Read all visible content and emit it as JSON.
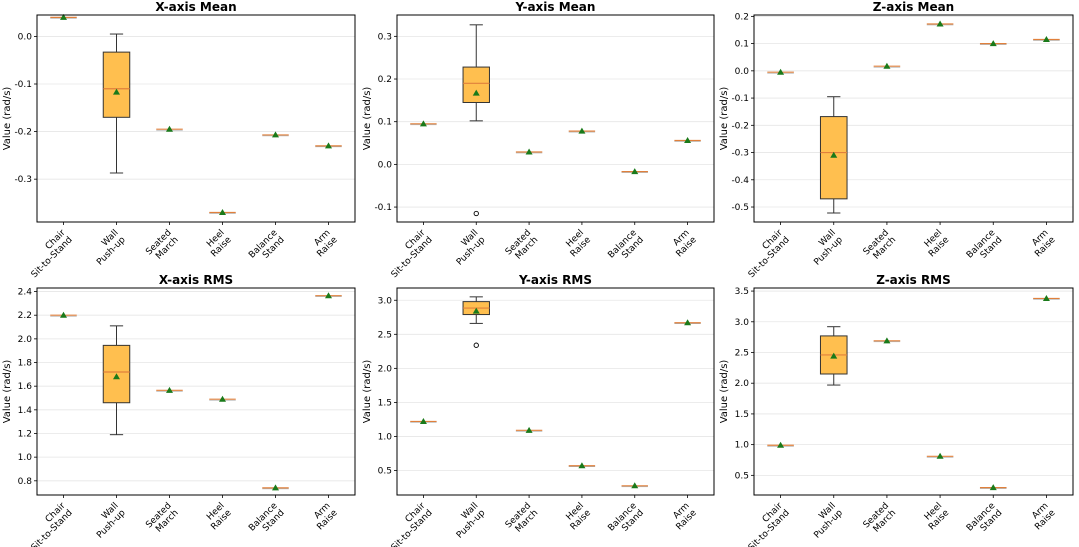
{
  "figure": {
    "ylabel": "Value (rad/s)"
  },
  "colors": {
    "box_fill": "#FFBF4F",
    "box_edge": "#333333",
    "median": "#E0803C",
    "mean_marker": "#1A7A1A",
    "grid": "#E6E6E6"
  },
  "categories": [
    [
      "Chair",
      "Sit-to-Stand"
    ],
    [
      "Wall",
      "Push-up"
    ],
    [
      "Seated",
      "March"
    ],
    [
      "Heel",
      "Raise"
    ],
    [
      "Balance",
      "Stand"
    ],
    [
      "Arm",
      "Raise"
    ]
  ],
  "chart_data": [
    {
      "type": "box",
      "title": "X-axis Mean",
      "ylabel": "Value (rad/s)",
      "ylim": [
        -0.39,
        0.045
      ],
      "yticks": [
        0.0,
        -0.1,
        -0.2,
        -0.3
      ],
      "tick_labels": [
        "0.0",
        "-0.1",
        "-0.2",
        "-0.3"
      ],
      "series": [
        {
          "category": "Chair Sit-to-Stand",
          "mean": 0.04
        },
        {
          "category": "Wall Push-up",
          "q1": -0.17,
          "median": -0.11,
          "q3": -0.033,
          "whisker_low": -0.287,
          "whisker_high": 0.005,
          "mean": -0.117
        },
        {
          "category": "Seated March",
          "mean": -0.195
        },
        {
          "category": "Heel Raise",
          "mean": -0.37
        },
        {
          "category": "Balance Stand",
          "mean": -0.207
        },
        {
          "category": "Arm Raise",
          "mean": -0.23
        }
      ]
    },
    {
      "type": "box",
      "title": "Y-axis Mean",
      "ylabel": "Value (rad/s)",
      "ylim": [
        -0.135,
        0.35
      ],
      "yticks": [
        0.3,
        0.2,
        0.1,
        0.0,
        -0.1
      ],
      "tick_labels": [
        "0.3",
        "0.2",
        "0.1",
        "0.0",
        "-0.1"
      ],
      "series": [
        {
          "category": "Chair Sit-to-Stand",
          "mean": 0.095
        },
        {
          "category": "Wall Push-up",
          "q1": 0.145,
          "median": 0.19,
          "q3": 0.228,
          "whisker_low": 0.102,
          "whisker_high": 0.327,
          "mean": 0.167,
          "outliers": [
            -0.115
          ]
        },
        {
          "category": "Seated March",
          "mean": 0.029
        },
        {
          "category": "Heel Raise",
          "mean": 0.078
        },
        {
          "category": "Balance Stand",
          "mean": -0.017
        },
        {
          "category": "Arm Raise",
          "mean": 0.056
        }
      ]
    },
    {
      "type": "box",
      "title": "Z-axis Mean",
      "ylabel": "Value (rad/s)",
      "ylim": [
        -0.555,
        0.205
      ],
      "yticks": [
        0.2,
        0.1,
        0.0,
        -0.1,
        -0.2,
        -0.3,
        -0.4,
        -0.5
      ],
      "tick_labels": [
        "0.2",
        "0.1",
        "0.0",
        "-0.1",
        "-0.2",
        "-0.3",
        "-0.4",
        "-0.5"
      ],
      "series": [
        {
          "category": "Chair Sit-to-Stand",
          "mean": -0.005
        },
        {
          "category": "Wall Push-up",
          "q1": -0.47,
          "median": -0.3,
          "q3": -0.168,
          "whisker_low": -0.522,
          "whisker_high": -0.095,
          "mean": -0.31
        },
        {
          "category": "Seated March",
          "mean": 0.017
        },
        {
          "category": "Heel Raise",
          "mean": 0.172
        },
        {
          "category": "Balance Stand",
          "mean": 0.1
        },
        {
          "category": "Arm Raise",
          "mean": 0.115
        }
      ]
    },
    {
      "type": "box",
      "title": "X-axis RMS",
      "ylabel": "Value (rad/s)",
      "ylim": [
        0.68,
        2.43
      ],
      "yticks": [
        2.4,
        2.2,
        2.0,
        1.8,
        1.6,
        1.4,
        1.2,
        1.0,
        0.8
      ],
      "tick_labels": [
        "2.4",
        "2.2",
        "2.0",
        "1.8",
        "1.6",
        "1.4",
        "1.2",
        "1.0",
        "0.8"
      ],
      "series": [
        {
          "category": "Chair Sit-to-Stand",
          "mean": 2.2
        },
        {
          "category": "Wall Push-up",
          "q1": 1.46,
          "median": 1.72,
          "q3": 1.945,
          "whisker_low": 1.19,
          "whisker_high": 2.11,
          "mean": 1.68
        },
        {
          "category": "Seated March",
          "mean": 1.565
        },
        {
          "category": "Heel Raise",
          "mean": 1.49
        },
        {
          "category": "Balance Stand",
          "mean": 0.74
        },
        {
          "category": "Arm Raise",
          "mean": 2.365
        }
      ]
    },
    {
      "type": "box",
      "title": "Y-axis RMS",
      "ylabel": "Value (rad/s)",
      "ylim": [
        0.14,
        3.18
      ],
      "yticks": [
        3.0,
        2.5,
        2.0,
        1.5,
        1.0,
        0.5
      ],
      "tick_labels": [
        "3.0",
        "2.5",
        "2.0",
        "1.5",
        "1.0",
        "0.5"
      ],
      "series": [
        {
          "category": "Chair Sit-to-Stand",
          "mean": 1.22
        },
        {
          "category": "Wall Push-up",
          "q1": 2.79,
          "median": 2.885,
          "q3": 2.98,
          "whisker_low": 2.66,
          "whisker_high": 3.05,
          "mean": 2.84,
          "outliers": [
            2.34
          ]
        },
        {
          "category": "Seated March",
          "mean": 1.09
        },
        {
          "category": "Heel Raise",
          "mean": 0.57
        },
        {
          "category": "Balance Stand",
          "mean": 0.275
        },
        {
          "category": "Arm Raise",
          "mean": 2.67
        }
      ]
    },
    {
      "type": "box",
      "title": "Z-axis RMS",
      "ylabel": "Value (rad/s)",
      "ylim": [
        0.18,
        3.55
      ],
      "yticks": [
        3.5,
        3.0,
        2.5,
        2.0,
        1.5,
        1.0,
        0.5
      ],
      "tick_labels": [
        "3.5",
        "3.0",
        "2.5",
        "2.0",
        "1.5",
        "1.0",
        "0.5"
      ],
      "series": [
        {
          "category": "Chair Sit-to-Stand",
          "mean": 0.99
        },
        {
          "category": "Wall Push-up",
          "q1": 2.15,
          "median": 2.46,
          "q3": 2.77,
          "whisker_low": 1.97,
          "whisker_high": 2.92,
          "mean": 2.44
        },
        {
          "category": "Seated March",
          "mean": 2.69
        },
        {
          "category": "Heel Raise",
          "mean": 0.81
        },
        {
          "category": "Balance Stand",
          "mean": 0.3
        },
        {
          "category": "Arm Raise",
          "mean": 3.38
        }
      ]
    }
  ]
}
